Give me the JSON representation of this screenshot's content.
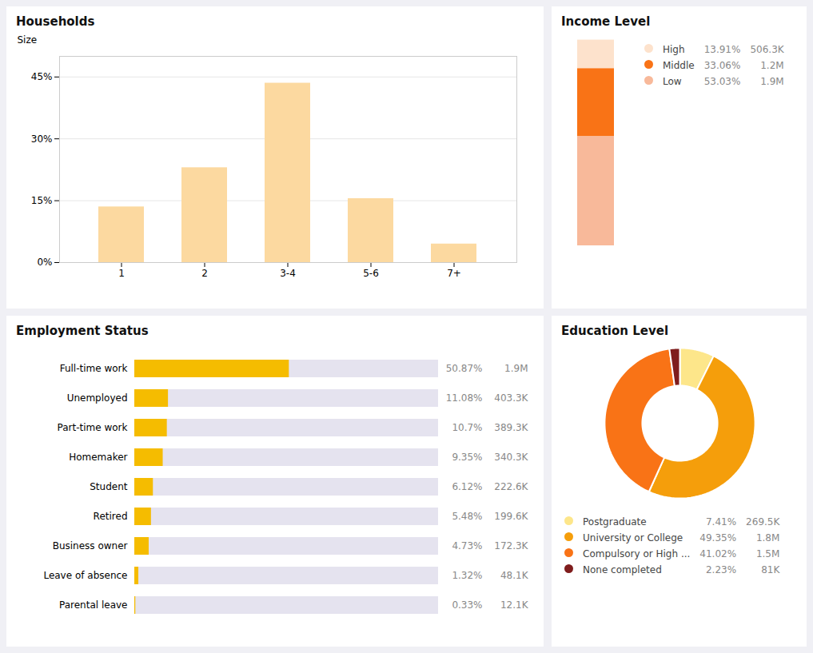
{
  "chart_data": [
    {
      "type": "bar",
      "title": "Households",
      "ylabel": "Size",
      "categories": [
        "1",
        "2",
        "3-4",
        "5-6",
        "7+"
      ],
      "values": [
        13.5,
        23.0,
        43.5,
        15.5,
        4.5
      ],
      "color": "#fcd9a0",
      "ylim": [
        0,
        50
      ],
      "yticks": [
        {
          "value": 0,
          "label": "0%"
        },
        {
          "value": 15,
          "label": "15%"
        },
        {
          "value": 30,
          "label": "30%"
        },
        {
          "value": 45,
          "label": "45%"
        }
      ],
      "grid": true
    },
    {
      "type": "bar",
      "title": "Income Level",
      "stacked": true,
      "categories": [
        null
      ],
      "series": [
        {
          "name": "High",
          "color": "#fde2cc",
          "values": [
            13.91
          ],
          "value_labels": [
            "13.91%"
          ],
          "counts": [
            506300
          ],
          "count_labels": [
            "506.3K"
          ]
        },
        {
          "name": "Middle",
          "color": "#f97316",
          "values": [
            33.06
          ],
          "value_labels": [
            "33.06%"
          ],
          "counts": [
            1200000
          ],
          "count_labels": [
            "1.2M"
          ]
        },
        {
          "name": "Low",
          "color": "#f8b99a",
          "values": [
            53.03
          ],
          "value_labels": [
            "53.03%"
          ],
          "counts": [
            1900000
          ],
          "count_labels": [
            "1.9M"
          ]
        }
      ],
      "ylim": [
        0,
        101
      ],
      "tick_labels": false
    },
    {
      "type": "bar",
      "title": "Employment Status",
      "orientation": "horizontal",
      "categories": [
        "Full-time work",
        "Unemployed",
        "Part-time work",
        "Homemaker",
        "Student",
        "Retired",
        "Business owner",
        "Leave of absence",
        "Parental leave"
      ],
      "values": [
        50.87,
        11.08,
        10.7,
        9.35,
        6.12,
        5.48,
        4.73,
        1.32,
        0.33
      ],
      "value_labels": [
        "50.87%",
        "11.08%",
        "10.7%",
        "9.35%",
        "6.12%",
        "5.48%",
        "4.73%",
        "1.32%",
        "0.33%"
      ],
      "counts": [
        1900000,
        403300,
        389300,
        340300,
        222600,
        199600,
        172300,
        48100,
        12100
      ],
      "count_labels": [
        "1.9M",
        "403.3K",
        "389.3K",
        "340.3K",
        "222.6K",
        "199.6K",
        "172.3K",
        "48.1K",
        "12.1K"
      ],
      "color": "#f5bc00",
      "xlim": [
        0,
        100
      ],
      "tick_labels": "y"
    },
    {
      "type": "pie",
      "title": "Education Level",
      "categories": [
        "Postgraduate",
        "University or College",
        "Compulsory or High ...",
        "None completed"
      ],
      "values": [
        7.41,
        49.35,
        41.02,
        2.23
      ],
      "value_labels": [
        "7.41%",
        "49.35%",
        "41.02%",
        "2.23%"
      ],
      "counts": [
        269500,
        1800000,
        1500000,
        81000
      ],
      "count_labels": [
        "269.5K",
        "1.8M",
        "1.5M",
        "81K"
      ],
      "colors": [
        "#fde68a",
        "#f59e0b",
        "#f97316",
        "#7f1d1d"
      ]
    }
  ]
}
